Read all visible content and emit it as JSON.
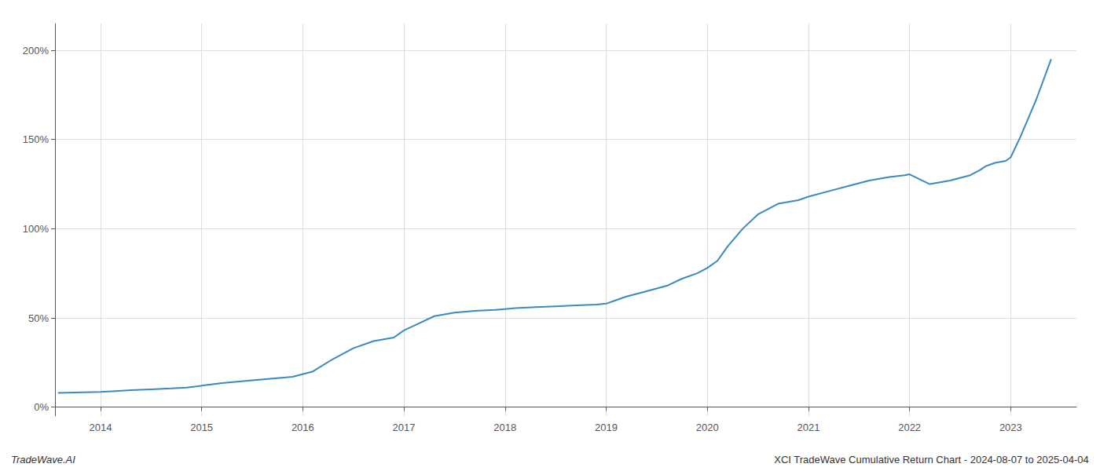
{
  "chart_data": {
    "type": "line",
    "annotations": [
      "TradeWave.AI",
      "XCI TradeWave Cumulative Return Chart - 2024-08-07 to 2025-04-04"
    ],
    "x": [
      2013.58,
      2014.0,
      2014.15,
      2014.3,
      2014.5,
      2014.7,
      2014.85,
      2015.0,
      2015.2,
      2015.5,
      2015.7,
      2015.9,
      2016.1,
      2016.3,
      2016.5,
      2016.7,
      2016.9,
      2017.0,
      2017.15,
      2017.3,
      2017.5,
      2017.7,
      2017.9,
      2018.0,
      2018.1,
      2018.3,
      2018.5,
      2018.7,
      2018.9,
      2019.0,
      2019.1,
      2019.2,
      2019.4,
      2019.6,
      2019.75,
      2019.9,
      2020.0,
      2020.1,
      2020.2,
      2020.35,
      2020.5,
      2020.7,
      2020.9,
      2021.0,
      2021.2,
      2021.4,
      2021.6,
      2021.8,
      2021.95,
      2022.0,
      2022.2,
      2022.4,
      2022.6,
      2022.7,
      2022.75,
      2022.8,
      2022.85,
      2022.95,
      2023.0,
      2023.1,
      2023.25,
      2023.4
    ],
    "values": [
      8,
      8.5,
      9,
      9.5,
      10,
      10.5,
      11,
      12,
      13.5,
      15,
      16,
      17,
      20,
      27,
      33,
      37,
      39,
      43,
      47,
      51,
      53,
      54,
      54.5,
      55,
      55.5,
      56,
      56.5,
      57,
      57.5,
      58,
      60,
      62,
      65,
      68,
      72,
      75,
      78,
      82,
      90,
      100,
      108,
      114,
      116,
      118,
      121,
      124,
      127,
      129,
      130,
      130.5,
      125,
      127,
      130,
      133,
      135,
      136,
      137,
      138,
      140,
      152,
      172,
      195
    ],
    "color": "#3a8abf",
    "xlim": [
      2013.55,
      2023.65
    ],
    "xticks": [
      2014,
      2015,
      2016,
      2017,
      2018,
      2019,
      2020,
      2021,
      2022,
      2023
    ],
    "ylim": [
      -5,
      215
    ],
    "yticks": [
      {
        "value": 0,
        "label": "0%"
      },
      {
        "value": 50,
        "label": "50%"
      },
      {
        "value": 100,
        "label": "100%"
      },
      {
        "value": 150,
        "label": "150%"
      },
      {
        "value": 200,
        "label": "200%"
      }
    ],
    "grid": true
  }
}
